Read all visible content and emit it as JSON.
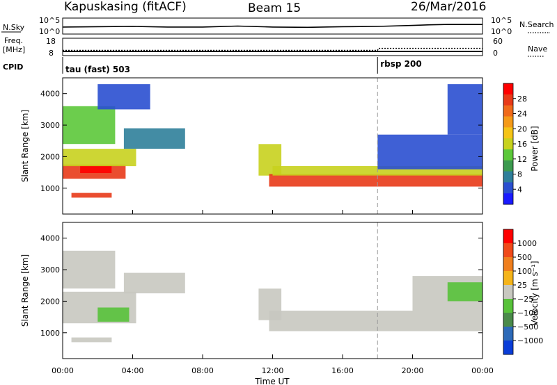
{
  "header": {
    "station": "Kapuskasing (fitACF)",
    "beam": "Beam 15",
    "date": "26/Mar/2016"
  },
  "noise_panel": {
    "left_label": "N.Sky",
    "right_label": "N.Search",
    "left_ticks": [
      "10^5",
      "10^0"
    ],
    "right_ticks": [
      "10^5",
      "10^0"
    ]
  },
  "freq_panel": {
    "left_label_1": "Freq.",
    "left_label_2": "[MHz]",
    "right_label": "Nave",
    "left_ticks": [
      "18",
      "8"
    ],
    "right_ticks": [
      "60",
      "0"
    ]
  },
  "cpid": {
    "label": "CPID",
    "modes": [
      {
        "name": "tau (fast) 503",
        "start_hour": 0
      },
      {
        "name": "rbsp 200",
        "start_hour": 18
      }
    ]
  },
  "x_axis": {
    "label": "Time UT",
    "tick_labels": [
      "00:00",
      "04:00",
      "08:00",
      "12:00",
      "16:00",
      "20:00",
      "00:00"
    ]
  },
  "power_colorbar": {
    "label": "Power [dB]",
    "ticks": [
      "28",
      "24",
      "20",
      "16",
      "12",
      "8",
      "4"
    ],
    "colors": [
      "#1a1aff",
      "#2a4fd0",
      "#2f7f9a",
      "#3c9a4f",
      "#5cc83a",
      "#c8d21e",
      "#f5c417",
      "#f59a18",
      "#f06a1a",
      "#e83a18",
      "#ff0000"
    ]
  },
  "velocity_colorbar": {
    "label": "Velocity [m s⁻¹]",
    "ticks": [
      "1000",
      "500",
      "100",
      "25",
      "−25",
      "−100",
      "−500",
      "−1000"
    ],
    "colors": [
      "#0a3dd8",
      "#2d6ab8",
      "#4a8a4a",
      "#58c23a",
      "#c8c8c0",
      "#f5b41a",
      "#f07f1e",
      "#f04a1a",
      "#ff0000"
    ]
  },
  "chart_data": [
    {
      "type": "line",
      "panel": "noise",
      "x_hours": [
        0,
        2,
        4,
        6,
        8,
        10,
        12,
        14,
        16,
        18,
        20,
        21,
        22,
        24
      ],
      "series": [
        {
          "name": "N.Sky",
          "values": [
            2.2,
            2.3,
            2.4,
            2.2,
            2.2,
            2.5,
            2.2,
            2.1,
            2.3,
            2.4,
            2.7,
            2.9,
            3.0,
            3.0
          ]
        }
      ],
      "ylim": [
        0,
        5
      ]
    },
    {
      "type": "line",
      "panel": "frequency",
      "x_hours": [
        0,
        18,
        18.05,
        24
      ],
      "series": [
        {
          "name": "Freq.",
          "values": [
            10.4,
            10.4,
            10.4,
            10.4
          ]
        },
        {
          "name": "Nave",
          "values": [
            18,
            18,
            25,
            25
          ]
        }
      ]
    },
    {
      "type": "heatmap",
      "panel": "power",
      "ylabel": "Slant Range [km]",
      "xlabel": "Time UT",
      "xlim": [
        0,
        24
      ],
      "ylim": [
        180,
        4500
      ],
      "yticks": [
        1000,
        2000,
        3000,
        4000
      ],
      "vlines_hours": [
        18
      ],
      "regions": [
        {
          "t": [
            0.0,
            3.6
          ],
          "r": [
            1300,
            1750
          ],
          "level": 9
        },
        {
          "t": [
            1.0,
            2.8
          ],
          "r": [
            1480,
            1720
          ],
          "level": 10
        },
        {
          "t": [
            0.0,
            4.2
          ],
          "r": [
            1700,
            2250
          ],
          "level": 5
        },
        {
          "t": [
            3.5,
            7.0
          ],
          "r": [
            2250,
            2900
          ],
          "level": 2
        },
        {
          "t": [
            0.0,
            3.0
          ],
          "r": [
            2400,
            3600
          ],
          "level": 4
        },
        {
          "t": [
            2.0,
            5.0
          ],
          "r": [
            3500,
            4300
          ],
          "level": 1
        },
        {
          "t": [
            0.5,
            2.8
          ],
          "r": [
            700,
            850
          ],
          "level": 9
        },
        {
          "t": [
            11.2,
            12.5
          ],
          "r": [
            1400,
            2400
          ],
          "level": 5
        },
        {
          "t": [
            11.8,
            24.0
          ],
          "r": [
            1050,
            1450
          ],
          "level": 9
        },
        {
          "t": [
            12.0,
            24.0
          ],
          "r": [
            1400,
            1700
          ],
          "level": 5
        },
        {
          "t": [
            18.0,
            24.0
          ],
          "r": [
            1600,
            2700
          ],
          "level": 1
        },
        {
          "t": [
            22.0,
            24.0
          ],
          "r": [
            2700,
            4300
          ],
          "level": 1
        }
      ]
    },
    {
      "type": "heatmap",
      "panel": "velocity",
      "ylabel": "Slant Range [km]",
      "xlabel": "Time UT",
      "xlim": [
        0,
        24
      ],
      "ylim": [
        180,
        4500
      ],
      "yticks": [
        1000,
        2000,
        3000,
        4000
      ],
      "vlines_hours": [
        18
      ],
      "regions": [
        {
          "t": [
            0.0,
            4.2
          ],
          "r": [
            1300,
            2300
          ],
          "level": 4
        },
        {
          "t": [
            2.0,
            3.8
          ],
          "r": [
            1350,
            1800
          ],
          "level": 3
        },
        {
          "t": [
            3.5,
            7.0
          ],
          "r": [
            2250,
            2900
          ],
          "level": 4
        },
        {
          "t": [
            0.0,
            3.0
          ],
          "r": [
            2400,
            3600
          ],
          "level": 4
        },
        {
          "t": [
            0.5,
            2.8
          ],
          "r": [
            700,
            850
          ],
          "level": 4
        },
        {
          "t": [
            11.2,
            12.5
          ],
          "r": [
            1400,
            2400
          ],
          "level": 4
        },
        {
          "t": [
            11.8,
            24.0
          ],
          "r": [
            1050,
            1700
          ],
          "level": 4
        },
        {
          "t": [
            20.0,
            24.0
          ],
          "r": [
            1700,
            2800
          ],
          "level": 4
        },
        {
          "t": [
            22.0,
            24.0
          ],
          "r": [
            2000,
            2600
          ],
          "level": 3
        }
      ]
    }
  ]
}
